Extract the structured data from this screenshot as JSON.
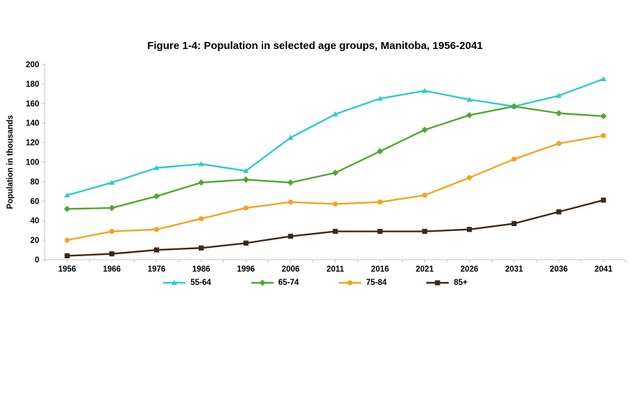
{
  "chart_data": {
    "type": "line",
    "title": "Figure 1-4: Population in selected age groups, Manitoba, 1956-2041",
    "xlabel": "",
    "ylabel": "Population in thousands",
    "ylim": [
      0,
      200
    ],
    "ytick_step": 20,
    "grid": false,
    "legend_position": "bottom",
    "categories": [
      "1956",
      "1966",
      "1976",
      "1986",
      "1996",
      "2006",
      "2011",
      "2016",
      "2021",
      "2026",
      "2031",
      "2036",
      "2041"
    ],
    "series": [
      {
        "name": "55-64",
        "color": "#2FCCC6",
        "marker": "triangle",
        "values": [
          66,
          79,
          94,
          98,
          91,
          125,
          149,
          165,
          173,
          164,
          157,
          168,
          185
        ]
      },
      {
        "name": "65-74",
        "color": "#4FA82F",
        "marker": "diamond",
        "values": [
          52,
          53,
          65,
          79,
          82,
          79,
          89,
          111,
          133,
          148,
          157,
          150,
          147
        ]
      },
      {
        "name": "75-84",
        "color": "#F8A21B",
        "marker": "circle",
        "values": [
          20,
          29,
          31,
          42,
          53,
          59,
          57,
          59,
          66,
          84,
          103,
          119,
          127
        ]
      },
      {
        "name": "85+",
        "color": "#3F2817",
        "marker": "square",
        "values": [
          4,
          6,
          10,
          12,
          17,
          24,
          29,
          29,
          29,
          31,
          37,
          49,
          61
        ]
      }
    ],
    "axis_color": "#C6C6C6",
    "tick_label_color": "#000000"
  }
}
